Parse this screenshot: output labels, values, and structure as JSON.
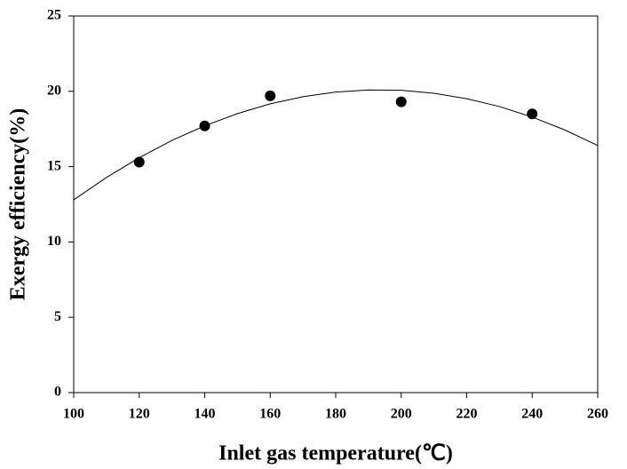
{
  "chart_data": {
    "type": "scatter",
    "x_label": "Inlet gas temperature(℃)",
    "y_label": "Exergy efficiency(%)",
    "xlim": [
      100,
      260
    ],
    "xticks": [
      100,
      120,
      140,
      160,
      180,
      200,
      220,
      240,
      260
    ],
    "ylim": [
      0,
      25
    ],
    "yticks": [
      0,
      5,
      10,
      15,
      20,
      25
    ],
    "points": {
      "color": "#000000",
      "x": [
        120,
        140,
        160,
        200,
        240
      ],
      "y": [
        15.3,
        17.7,
        19.7,
        19.3,
        18.5
      ]
    },
    "fit": {
      "color": "#000000",
      "x": [
        100,
        110,
        120,
        130,
        140,
        150,
        160,
        170,
        180,
        190,
        200,
        210,
        220,
        230,
        240,
        250,
        260
      ],
      "y": [
        12.8,
        14.28,
        15.59,
        16.74,
        17.71,
        18.52,
        19.17,
        19.64,
        19.95,
        20.09,
        20.07,
        19.87,
        19.51,
        18.99,
        18.29,
        17.43,
        16.4
      ]
    }
  }
}
